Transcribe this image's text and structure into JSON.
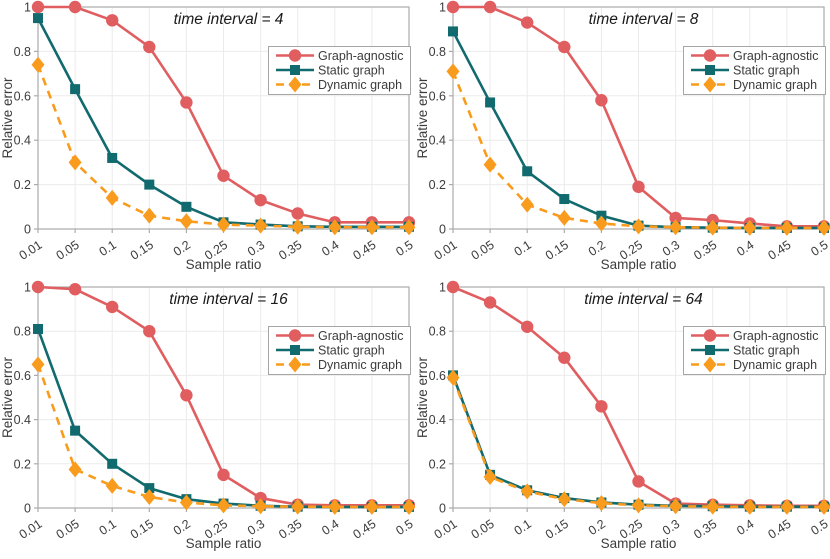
{
  "figure": {
    "xlabel": "Sample ratio",
    "ylabel": "Relative error",
    "x_tick_labels": [
      "0.01",
      "0.05",
      "0.1",
      "0.15",
      "0.2",
      "0.25",
      "0.3",
      "0.35",
      "0.4",
      "0.45",
      "0.5"
    ],
    "y_ticks": [
      0,
      0.2,
      0.4,
      0.6,
      0.8,
      1
    ],
    "y_tick_labels": [
      "0",
      "0.2",
      "0.4",
      "0.6",
      "0.8",
      "1"
    ],
    "ylim": [
      0,
      1
    ],
    "grid": true,
    "legend_position": "top-right",
    "legend_labels": [
      "Graph-agnostic",
      "Static graph",
      "Dynamic graph"
    ],
    "series_styles": [
      {
        "name": "Graph-agnostic",
        "color": "#E05D60",
        "marker": "circle",
        "line": "solid"
      },
      {
        "name": "Static graph",
        "color": "#116A6E",
        "marker": "square",
        "line": "solid"
      },
      {
        "name": "Dynamic graph",
        "color": "#F99B1D",
        "marker": "diamond",
        "line": "dashed"
      }
    ],
    "colors": {
      "graph_agnostic": "#E05D60",
      "static_graph": "#116A6E",
      "dynamic_graph": "#F99B1D",
      "grid_line": "#EBEBEB",
      "axis_box": "#ABABAB",
      "tick_text": "#3C3C3C",
      "title_text": "#1A1A1A",
      "legend_border": "#A6A6A6",
      "background": "#FFFFFF"
    }
  },
  "chart_data": [
    {
      "type": "line",
      "title": "time interval = 4",
      "xlabel": "Sample ratio",
      "ylabel": "Relative error",
      "ylim": [
        0,
        1
      ],
      "categories": [
        0.01,
        0.05,
        0.1,
        0.15,
        0.2,
        0.25,
        0.3,
        0.35,
        0.4,
        0.45,
        0.5
      ],
      "series": [
        {
          "name": "Graph-agnostic",
          "values": [
            1.0,
            1.0,
            0.94,
            0.82,
            0.57,
            0.24,
            0.13,
            0.07,
            0.03,
            0.03,
            0.03
          ]
        },
        {
          "name": "Static graph",
          "values": [
            0.95,
            0.63,
            0.32,
            0.2,
            0.1,
            0.03,
            0.02,
            0.012,
            0.01,
            0.01,
            0.01
          ]
        },
        {
          "name": "Dynamic graph",
          "values": [
            0.74,
            0.3,
            0.14,
            0.06,
            0.035,
            0.02,
            0.015,
            0.01,
            0.008,
            0.008,
            0.008
          ]
        }
      ]
    },
    {
      "type": "line",
      "title": "time interval = 8",
      "xlabel": "Sample ratio",
      "ylabel": "Relative error",
      "ylim": [
        0,
        1
      ],
      "categories": [
        0.01,
        0.05,
        0.1,
        0.15,
        0.2,
        0.25,
        0.3,
        0.35,
        0.4,
        0.45,
        0.5
      ],
      "series": [
        {
          "name": "Graph-agnostic",
          "values": [
            1.0,
            1.0,
            0.93,
            0.82,
            0.58,
            0.19,
            0.05,
            0.04,
            0.025,
            0.012,
            0.012
          ]
        },
        {
          "name": "Static graph",
          "values": [
            0.89,
            0.57,
            0.26,
            0.135,
            0.06,
            0.015,
            0.008,
            0.006,
            0.005,
            0.005,
            0.005
          ]
        },
        {
          "name": "Dynamic graph",
          "values": [
            0.71,
            0.29,
            0.11,
            0.05,
            0.025,
            0.012,
            0.008,
            0.006,
            0.005,
            0.005,
            0.005
          ]
        }
      ]
    },
    {
      "type": "line",
      "title": "time interval = 16",
      "xlabel": "Sample ratio",
      "ylabel": "Relative error",
      "ylim": [
        0,
        1
      ],
      "categories": [
        0.01,
        0.05,
        0.1,
        0.15,
        0.2,
        0.25,
        0.3,
        0.35,
        0.4,
        0.45,
        0.5
      ],
      "series": [
        {
          "name": "Graph-agnostic",
          "values": [
            1.0,
            0.99,
            0.91,
            0.8,
            0.51,
            0.15,
            0.045,
            0.015,
            0.012,
            0.012,
            0.012
          ]
        },
        {
          "name": "Static graph",
          "values": [
            0.81,
            0.35,
            0.2,
            0.09,
            0.04,
            0.02,
            0.01,
            0.006,
            0.005,
            0.005,
            0.005
          ]
        },
        {
          "name": "Dynamic graph",
          "values": [
            0.65,
            0.175,
            0.1,
            0.05,
            0.025,
            0.012,
            0.008,
            0.006,
            0.005,
            0.005,
            0.005
          ]
        }
      ]
    },
    {
      "type": "line",
      "title": "time interval = 64",
      "xlabel": "Sample ratio",
      "ylabel": "Relative error",
      "ylim": [
        0,
        1
      ],
      "categories": [
        0.01,
        0.05,
        0.1,
        0.15,
        0.2,
        0.25,
        0.3,
        0.35,
        0.4,
        0.45,
        0.5
      ],
      "series": [
        {
          "name": "Graph-agnostic",
          "values": [
            1.0,
            0.93,
            0.82,
            0.68,
            0.46,
            0.12,
            0.02,
            0.015,
            0.012,
            0.01,
            0.01
          ]
        },
        {
          "name": "Static graph",
          "values": [
            0.6,
            0.15,
            0.08,
            0.045,
            0.025,
            0.015,
            0.01,
            0.008,
            0.006,
            0.006,
            0.006
          ]
        },
        {
          "name": "Dynamic graph",
          "values": [
            0.59,
            0.14,
            0.075,
            0.04,
            0.022,
            0.012,
            0.008,
            0.006,
            0.005,
            0.005,
            0.005
          ]
        }
      ]
    }
  ]
}
